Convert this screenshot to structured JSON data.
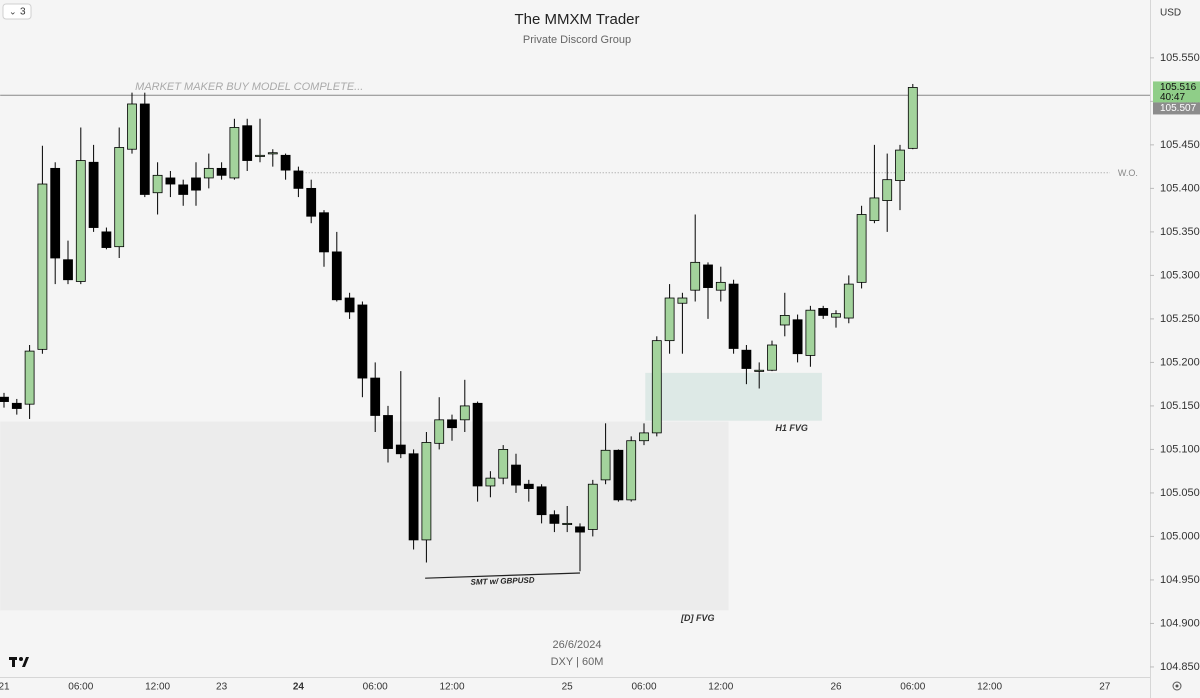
{
  "chart_data": {
    "type": "candlestick",
    "title": "The MMXM Trader",
    "subtitle": "Private Discord Group",
    "date": "26/6/2024",
    "symbol": "DXY | 60M",
    "currency": "USD",
    "interval_badge": "3",
    "categories": [
      "21",
      null,
      null,
      null,
      null,
      null,
      "06:00",
      null,
      null,
      null,
      null,
      null,
      "12:00",
      null,
      null,
      null,
      null,
      "23",
      null,
      null,
      null,
      null,
      null,
      "24",
      null,
      null,
      null,
      null,
      null,
      "06:00",
      null,
      null,
      null,
      null,
      null,
      "12:00",
      null,
      null,
      null,
      null,
      null,
      null,
      null,
      null,
      "25",
      null,
      null,
      null,
      null,
      null,
      "06:00",
      null,
      null,
      null,
      null,
      null,
      "12:00",
      null,
      null,
      null,
      null,
      null,
      null,
      null,
      null,
      "26",
      null,
      null,
      null,
      null,
      null,
      "06:00",
      null,
      null,
      null,
      null,
      null,
      "12:00",
      null,
      null,
      null,
      null,
      null,
      null,
      null,
      null,
      "27",
      null,
      null,
      null
    ],
    "open": [
      105.16,
      105.153,
      105.152,
      105.215,
      105.423,
      105.318,
      105.293,
      105.43,
      105.35,
      105.333,
      105.445,
      105.497,
      105.395,
      105.412,
      105.404,
      105.412,
      105.412,
      105.423,
      105.412,
      105.472,
      105.438,
      105.44,
      105.438,
      105.42,
      105.4,
      105.372,
      105.327,
      105.274,
      105.266,
      105.182,
      105.139,
      105.105,
      105.095,
      104.996,
      105.107,
      105.134,
      105.134,
      105.153,
      105.058,
      105.067,
      105.082,
      105.06,
      105.057,
      105.025,
      105.015,
      105.011,
      105.008,
      105.065,
      105.099,
      105.042,
      105.11,
      105.119,
      105.225,
      105.268,
      105.283,
      105.312,
      105.283,
      105.29,
      105.214,
      105.19,
      105.191,
      105.243,
      105.249,
      105.208,
      105.262,
      105.252,
      105.251,
      105.292,
      105.363,
      105.386,
      105.409,
      105.446,
      null,
      null,
      null,
      null,
      null,
      null,
      null,
      null,
      null,
      null,
      null,
      null,
      null,
      null,
      null,
      null,
      null,
      null
    ],
    "high": [
      105.165,
      105.158,
      105.22,
      105.449,
      105.43,
      105.34,
      105.47,
      105.45,
      105.355,
      105.47,
      105.51,
      105.51,
      105.43,
      105.42,
      105.41,
      105.43,
      105.44,
      105.43,
      105.48,
      105.48,
      105.48,
      105.445,
      105.44,
      105.425,
      105.41,
      105.375,
      105.35,
      105.28,
      105.27,
      105.2,
      105.15,
      105.19,
      105.1,
      105.12,
      105.16,
      105.14,
      105.18,
      105.155,
      105.075,
      105.105,
      105.095,
      105.065,
      105.06,
      105.03,
      105.035,
      105.015,
      105.065,
      105.13,
      105.1,
      105.115,
      105.13,
      105.23,
      105.29,
      105.28,
      105.37,
      105.315,
      105.31,
      105.295,
      105.22,
      105.2,
      105.225,
      105.28,
      105.255,
      105.265,
      105.265,
      105.26,
      105.3,
      105.38,
      105.45,
      105.44,
      105.45,
      105.52,
      null,
      null,
      null,
      null,
      null,
      null,
      null,
      null,
      null,
      null,
      null,
      null,
      null,
      null,
      null,
      null,
      null,
      null
    ],
    "low": [
      105.148,
      105.14,
      105.135,
      105.21,
      105.29,
      105.29,
      105.29,
      105.35,
      105.33,
      105.32,
      105.44,
      105.39,
      105.37,
      105.39,
      105.38,
      105.38,
      105.4,
      105.41,
      105.41,
      105.42,
      105.43,
      105.425,
      105.41,
      105.39,
      105.36,
      105.31,
      105.27,
      105.25,
      105.16,
      105.12,
      105.085,
      105.09,
      104.985,
      104.97,
      105.1,
      105.11,
      105.12,
      105.04,
      105.045,
      105.06,
      105.05,
      105.04,
      105.015,
      105.005,
      105.005,
      104.96,
      105.0,
      105.06,
      105.04,
      105.04,
      105.105,
      105.115,
      105.21,
      105.21,
      105.27,
      105.25,
      105.27,
      105.21,
      105.175,
      105.17,
      105.19,
      105.23,
      105.2,
      105.195,
      105.25,
      105.24,
      105.245,
      105.285,
      105.36,
      105.35,
      105.375,
      105.445,
      null,
      null,
      null,
      null,
      null,
      null,
      null,
      null,
      null,
      null,
      null,
      null,
      null,
      null,
      null,
      null,
      null,
      null
    ],
    "close": [
      105.155,
      105.147,
      105.213,
      105.405,
      105.32,
      105.295,
      105.432,
      105.355,
      105.332,
      105.447,
      105.497,
      105.393,
      105.415,
      105.405,
      105.393,
      105.398,
      105.423,
      105.415,
      105.47,
      105.432,
      105.438,
      105.441,
      105.421,
      105.4,
      105.368,
      105.327,
      105.272,
      105.258,
      105.182,
      105.139,
      105.101,
      105.095,
      104.996,
      105.108,
      105.134,
      105.125,
      105.15,
      105.058,
      105.067,
      105.1,
      105.059,
      105.055,
      105.025,
      105.015,
      105.015,
      105.005,
      105.06,
      105.099,
      105.042,
      105.11,
      105.119,
      105.225,
      105.274,
      105.274,
      105.315,
      105.286,
      105.292,
      105.216,
      105.193,
      105.191,
      105.22,
      105.254,
      105.21,
      105.26,
      105.254,
      105.256,
      105.29,
      105.37,
      105.389,
      105.41,
      105.444,
      105.516,
      null,
      null,
      null,
      null,
      null,
      null,
      null,
      null,
      null,
      null,
      null,
      null,
      null,
      null,
      null,
      null,
      null,
      null
    ],
    "up_color": "#a3d39c",
    "down_color": "#000000",
    "ylim": [
      104.835,
      105.6165
    ],
    "yticks": [
      {
        "value": 105.55,
        "label": "105.550"
      },
      {
        "value": 105.5,
        "label": "105.500"
      },
      {
        "value": 105.45,
        "label": "105.450"
      },
      {
        "value": 105.4,
        "label": "105.400"
      },
      {
        "value": 105.35,
        "label": "105.350"
      },
      {
        "value": 105.3,
        "label": "105.300"
      },
      {
        "value": 105.25,
        "label": "105.250"
      },
      {
        "value": 105.2,
        "label": "105.200"
      },
      {
        "value": 105.15,
        "label": "105.150"
      },
      {
        "value": 105.1,
        "label": "105.100"
      },
      {
        "value": 105.05,
        "label": "105.050"
      },
      {
        "value": 105,
        "label": "105.000"
      },
      {
        "value": 104.95,
        "label": "104.950"
      },
      {
        "value": 104.9,
        "label": "104.900"
      },
      {
        "value": 104.85,
        "label": "104.850"
      }
    ],
    "price_tags": [
      {
        "value": 105.516,
        "label": "105.516",
        "countdown": "40:47",
        "color": "#8fce88"
      },
      {
        "value": 105.507,
        "label": "105.507",
        "color": "#8c8c8c"
      }
    ],
    "lines": [
      {
        "value": 105.507,
        "x": [
          -0.3,
          89.6
        ],
        "label": "MARKET MAKER BUY MODEL COMPLETE...",
        "style": "solid"
      },
      {
        "value": 105.418,
        "x": [
          23.1,
          86.4
        ],
        "label": "W.O.",
        "style": "dotted"
      }
    ],
    "zones": [
      {
        "label": "[D] FVG",
        "x": [
          -0.3,
          56.6
        ],
        "y": [
          104.915,
          105.132
        ],
        "color": "#ececec"
      },
      {
        "label": "H1 FVG",
        "x": [
          50.1,
          63.9
        ],
        "y": [
          105.133,
          105.188
        ],
        "color": "#dde9e6"
      }
    ],
    "smt": {
      "label": "SMT w/ GBPUSD",
      "x": [
        32.9,
        45
      ],
      "y": [
        104.952,
        104.958
      ]
    }
  }
}
